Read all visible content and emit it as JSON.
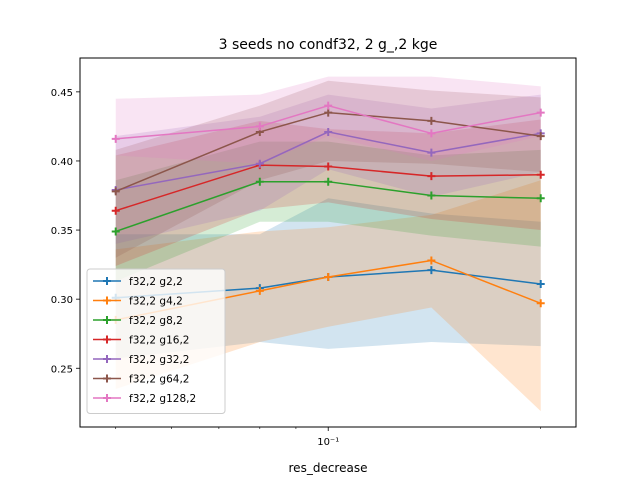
{
  "chart_data": {
    "type": "line",
    "title": "3 seeds no condf32, 2 g_,2 kge",
    "xlabel": "res_decrease",
    "ylabel": "",
    "x_scale": "log",
    "x": [
      0.05,
      0.08,
      0.1,
      0.14,
      0.2
    ],
    "xlim": [
      0.0445,
      0.2244
    ],
    "ylim": [
      0.2075,
      0.4745
    ],
    "x_ticks": [
      {
        "value": 0.1,
        "label": "10⁻¹"
      }
    ],
    "y_ticks": [
      {
        "value": 0.25,
        "label": "0.25"
      },
      {
        "value": 0.3,
        "label": "0.30"
      },
      {
        "value": 0.35,
        "label": "0.35"
      },
      {
        "value": 0.4,
        "label": "0.40"
      },
      {
        "value": 0.45,
        "label": "0.45"
      }
    ],
    "grid": false,
    "legend_position": "lower-left",
    "marker": "plus",
    "series": [
      {
        "name": "f32,2 g2,2",
        "color": "#1f77b4",
        "values": [
          0.301,
          0.308,
          0.316,
          0.321,
          0.311
        ],
        "lower": [
          0.257,
          0.269,
          0.264,
          0.269,
          0.266
        ],
        "upper": [
          0.347,
          0.347,
          0.373,
          0.362,
          0.356
        ]
      },
      {
        "name": "f32,2 g4,2",
        "color": "#ff7f0e",
        "values": [
          0.285,
          0.306,
          0.316,
          0.328,
          0.297
        ],
        "lower": [
          0.235,
          0.269,
          0.28,
          0.294,
          0.219
        ],
        "upper": [
          0.336,
          0.349,
          0.352,
          0.361,
          0.386
        ]
      },
      {
        "name": "f32,2 g8,2",
        "color": "#2ca02c",
        "values": [
          0.349,
          0.385,
          0.385,
          0.375,
          0.373
        ],
        "lower": [
          0.313,
          0.356,
          0.356,
          0.346,
          0.338
        ],
        "upper": [
          0.386,
          0.414,
          0.414,
          0.404,
          0.408
        ]
      },
      {
        "name": "f32,2 g16,2",
        "color": "#d62728",
        "values": [
          0.364,
          0.397,
          0.396,
          0.389,
          0.39
        ],
        "lower": [
          0.324,
          0.365,
          0.37,
          0.358,
          0.35
        ],
        "upper": [
          0.404,
          0.429,
          0.423,
          0.42,
          0.43
        ]
      },
      {
        "name": "f32,2 g32,2",
        "color": "#9467bd",
        "values": [
          0.379,
          0.398,
          0.421,
          0.406,
          0.42
        ],
        "lower": [
          0.34,
          0.364,
          0.394,
          0.374,
          0.392
        ],
        "upper": [
          0.418,
          0.432,
          0.448,
          0.438,
          0.448
        ]
      },
      {
        "name": "f32,2 g64,2",
        "color": "#8c564b",
        "values": [
          0.378,
          0.421,
          0.435,
          0.429,
          0.418
        ],
        "lower": [
          0.33,
          0.386,
          0.4,
          0.398,
          0.392
        ],
        "upper": [
          0.408,
          0.44,
          0.458,
          0.451,
          0.446
        ]
      },
      {
        "name": "f32,2 g128,2",
        "color": "#e377c2",
        "values": [
          0.416,
          0.425,
          0.44,
          0.42,
          0.435
        ],
        "lower": [
          0.404,
          0.398,
          0.418,
          0.4,
          0.418
        ],
        "upper": [
          0.445,
          0.448,
          0.461,
          0.461,
          0.454
        ]
      }
    ]
  }
}
